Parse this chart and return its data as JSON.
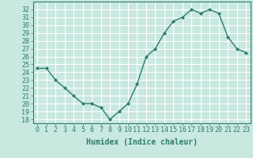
{
  "x": [
    0,
    1,
    2,
    3,
    4,
    5,
    6,
    7,
    8,
    9,
    10,
    11,
    12,
    13,
    14,
    15,
    16,
    17,
    18,
    19,
    20,
    21,
    22,
    23
  ],
  "y": [
    24.5,
    24.5,
    23,
    22,
    21,
    20,
    20,
    19.5,
    18,
    19,
    20,
    22.5,
    26,
    27,
    29,
    30.5,
    31,
    32,
    31.5,
    32,
    31.5,
    28.5,
    27,
    26.5
  ],
  "line_color": "#2e7d6e",
  "marker": "D",
  "marker_size": 2,
  "bg_color": "#c8e8e0",
  "grid_color": "#ffffff",
  "xlabel": "Humidex (Indice chaleur)",
  "xlabel_fontsize": 7,
  "ylabel_ticks": [
    18,
    19,
    20,
    21,
    22,
    23,
    24,
    25,
    26,
    27,
    28,
    29,
    30,
    31,
    32
  ],
  "ylim": [
    17.5,
    33
  ],
  "xlim": [
    -0.5,
    23.5
  ],
  "tick_label_fontsize": 6,
  "tick_color": "#2e7d6e",
  "spine_color": "#2e7d6e",
  "linewidth": 1.0
}
